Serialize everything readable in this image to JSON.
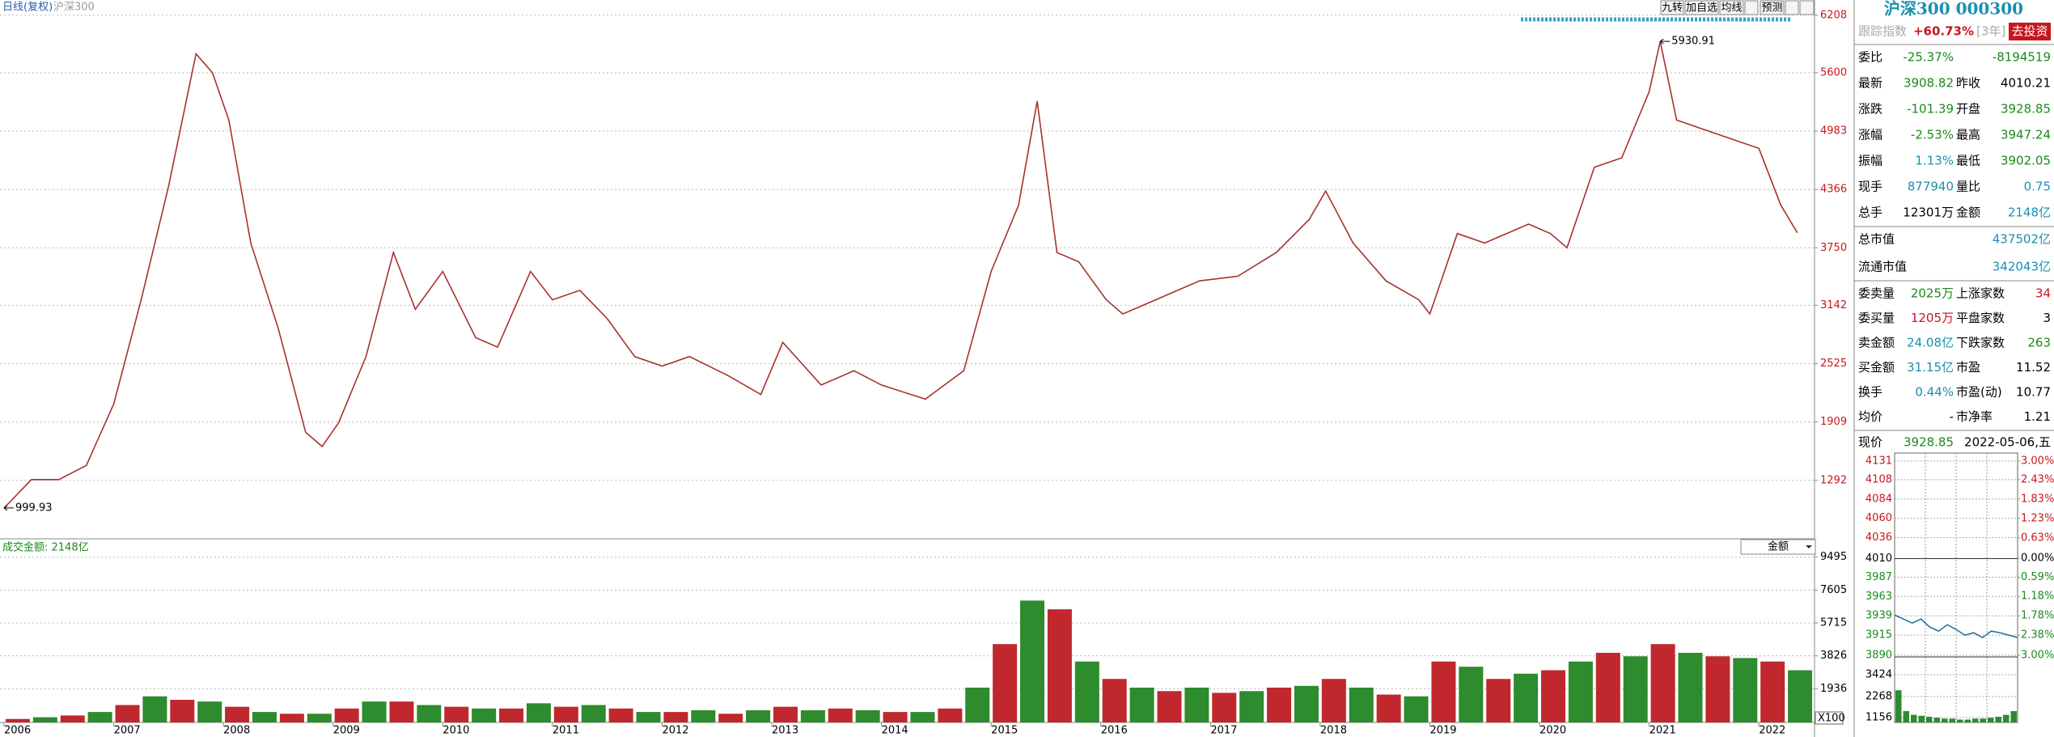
{
  "toolbar": [
    "九转",
    "加自选",
    "均线",
    "预测"
  ],
  "chart_data": [
    {
      "type": "line",
      "title": "日线(复权)",
      "subtitle": "沪深300",
      "color": "#a8322d",
      "x": [
        2006.0,
        2006.25,
        2006.5,
        2006.75,
        2007.0,
        2007.25,
        2007.5,
        2007.75,
        2007.9,
        2008.05,
        2008.25,
        2008.5,
        2008.75,
        2008.9,
        2009.05,
        2009.3,
        2009.55,
        2009.75,
        2010.0,
        2010.3,
        2010.5,
        2010.8,
        2011.0,
        2011.25,
        2011.5,
        2011.75,
        2012.0,
        2012.25,
        2012.6,
        2012.9,
        2013.1,
        2013.45,
        2013.75,
        2014.0,
        2014.4,
        2014.75,
        2015.0,
        2015.25,
        2015.42,
        2015.6,
        2015.8,
        2016.05,
        2016.2,
        2016.5,
        2016.9,
        2017.25,
        2017.6,
        2017.9,
        2018.05,
        2018.3,
        2018.6,
        2018.9,
        2019.0,
        2019.25,
        2019.5,
        2019.9,
        2020.1,
        2020.25,
        2020.5,
        2020.75,
        2021.0,
        2021.1,
        2021.25,
        2021.5,
        2021.75,
        2022.0,
        2022.2,
        2022.35
      ],
      "values": [
        999.93,
        1300,
        1300,
        1450,
        2100,
        3200,
        4400,
        5800,
        5600,
        5100,
        3800,
        2900,
        1800,
        1650,
        1900,
        2600,
        3700,
        3100,
        3500,
        2800,
        2700,
        3500,
        3200,
        3300,
        3000,
        2600,
        2500,
        2600,
        2400,
        2200,
        2750,
        2300,
        2450,
        2300,
        2150,
        2450,
        3500,
        4200,
        5300,
        3700,
        3600,
        3200,
        3050,
        3200,
        3400,
        3450,
        3700,
        4050,
        4350,
        3800,
        3400,
        3200,
        3050,
        3900,
        3800,
        4000,
        3900,
        3750,
        4600,
        4700,
        5400,
        5930.91,
        5100,
        5000,
        4900,
        4800,
        4200,
        3908.82
      ],
      "annotations": [
        {
          "label": "5930.91",
          "x": 2021.1,
          "y": 5930.91
        },
        {
          "label": "999.93",
          "x": 2006.0,
          "y": 999.93
        }
      ],
      "xlim": [
        2006,
        2022.5
      ],
      "xticks": [
        2006,
        2007,
        2008,
        2009,
        2010,
        2011,
        2012,
        2013,
        2014,
        2015,
        2016,
        2017,
        2018,
        2019,
        2020,
        2021,
        2022
      ],
      "ylim": [
        683,
        6300
      ],
      "yticks": [
        6208,
        5600,
        4983,
        4366,
        3750,
        3142,
        2525,
        1909,
        1292
      ],
      "grid": true
    },
    {
      "type": "bar",
      "title": "成交金额: 2148亿",
      "dropdown": "金额",
      "unit_label": "X100",
      "colors": [
        "#c0282d",
        "#2e8b2e"
      ],
      "x": [
        2006.125,
        2006.375,
        2006.625,
        2006.875,
        2007.125,
        2007.375,
        2007.625,
        2007.875,
        2008.125,
        2008.375,
        2008.625,
        2008.875,
        2009.125,
        2009.375,
        2009.625,
        2009.875,
        2010.125,
        2010.375,
        2010.625,
        2010.875,
        2011.125,
        2011.375,
        2011.625,
        2011.875,
        2012.125,
        2012.375,
        2012.625,
        2012.875,
        2013.125,
        2013.375,
        2013.625,
        2013.875,
        2014.125,
        2014.375,
        2014.625,
        2014.875,
        2015.125,
        2015.375,
        2015.625,
        2015.875,
        2016.125,
        2016.375,
        2016.625,
        2016.875,
        2017.125,
        2017.375,
        2017.625,
        2017.875,
        2018.125,
        2018.375,
        2018.625,
        2018.875,
        2019.125,
        2019.375,
        2019.625,
        2019.875,
        2020.125,
        2020.375,
        2020.625,
        2020.875,
        2021.125,
        2021.375,
        2021.625,
        2021.875,
        2022.125,
        2022.375
      ],
      "values": [
        200,
        300,
        400,
        600,
        1000,
        1500,
        1300,
        1200,
        900,
        600,
        500,
        500,
        800,
        1200,
        1200,
        1000,
        900,
        800,
        800,
        1100,
        900,
        1000,
        800,
        600,
        600,
        700,
        500,
        700,
        900,
        700,
        800,
        700,
        600,
        600,
        800,
        2000,
        4500,
        7000,
        6500,
        3500,
        2500,
        2000,
        1800,
        2000,
        1700,
        1800,
        2000,
        2100,
        2500,
        2000,
        1600,
        1500,
        3500,
        3200,
        2500,
        2800,
        3000,
        3500,
        4000,
        3800,
        4500,
        4000,
        3800,
        3700,
        3500,
        3000
      ],
      "ylim": [
        0,
        9900
      ],
      "yticks": [
        9495,
        7605,
        5715,
        3826,
        1936
      ],
      "grid": true
    },
    {
      "type": "intraday",
      "color": "#1f6f9a",
      "base": 4010,
      "values": [
        3940,
        3935,
        3930,
        3935,
        3925,
        3920,
        3928,
        3922,
        3915,
        3918,
        3912,
        3920,
        3918,
        3915,
        3912
      ],
      "ylim": [
        3890,
        4131
      ],
      "yticks": [
        4131,
        4108,
        4084,
        4060,
        4036,
        4010,
        3987,
        3963,
        3939,
        3915,
        3890
      ],
      "y2lim": [
        -3,
        3
      ],
      "y2ticks": [
        {
          "value": 3,
          "label": "3.00%"
        },
        {
          "value": 2.43,
          "label": "2.43%"
        },
        {
          "value": 1.83,
          "label": "1.83%"
        },
        {
          "value": 1.23,
          "label": "1.23%"
        },
        {
          "value": 0.63,
          "label": "0.63%"
        },
        {
          "value": 0,
          "label": "0.00%"
        },
        {
          "value": -0.59,
          "label": "0.59%"
        },
        {
          "value": -1.18,
          "label": "1.18%"
        },
        {
          "value": -1.78,
          "label": "1.78%"
        },
        {
          "value": -2.38,
          "label": "2.38%"
        },
        {
          "value": -3,
          "label": "3.00%"
        }
      ],
      "volume": {
        "color": "#2e8b2e",
        "values": [
          2600,
          1500,
          1300,
          1250,
          1200,
          1150,
          1100,
          1100,
          1050,
          1050,
          1100,
          1100,
          1150,
          1200,
          1300,
          1500
        ],
        "ylim": [
          899,
          4365
        ],
        "yticks": [
          3424,
          2268,
          1156
        ]
      }
    }
  ],
  "panel": {
    "title": "沪深300 000300",
    "track": {
      "label": "跟踪指数",
      "value": "+60.73%",
      "period": "[3年]",
      "button": "去投资"
    },
    "sections": [
      [
        [
          {
            "label": "委比",
            "value": "-25.37%",
            "color": "#1a8a1a"
          },
          {
            "value": "-8194519",
            "color": "#1a8a1a"
          }
        ],
        [
          {
            "label": "最新",
            "value": "3908.82",
            "color": "#1a8a1a"
          },
          {
            "label": "昨收",
            "value": "4010.21",
            "color": "#000000"
          }
        ],
        [
          {
            "label": "涨跌",
            "value": "-101.39",
            "color": "#1a8a1a"
          },
          {
            "label": "开盘",
            "value": "3928.85",
            "color": "#1a8a1a"
          }
        ],
        [
          {
            "label": "涨幅",
            "value": "-2.53%",
            "color": "#1a8a1a"
          },
          {
            "label": "最高",
            "value": "3947.24",
            "color": "#1a8a1a"
          }
        ],
        [
          {
            "label": "振幅",
            "value": "1.13%",
            "color": "#1a8fb0"
          },
          {
            "label": "最低",
            "value": "3902.05",
            "color": "#1a8a1a"
          }
        ],
        [
          {
            "label": "现手",
            "value": "877940",
            "color": "#1a8fb0"
          },
          {
            "label": "量比",
            "value": "0.75",
            "color": "#1a8fb0"
          }
        ],
        [
          {
            "label": "总手",
            "value": "12301万",
            "color": "#000000"
          },
          {
            "label": "金额",
            "value": "2148亿",
            "color": "#1a8fb0"
          }
        ]
      ],
      [
        [
          {
            "label": "总市值",
            "value": "437502亿",
            "color": "#1a8fb0"
          }
        ],
        [
          {
            "label": "流通市值",
            "value": "342043亿",
            "color": "#1a8fb0"
          }
        ]
      ],
      [
        [
          {
            "label": "委卖量",
            "value": "2025万",
            "color": "#1a8a1a"
          },
          {
            "label": "上涨家数",
            "value": "34",
            "color": "#c8161d"
          }
        ],
        [
          {
            "label": "委买量",
            "value": "1205万",
            "color": "#c8161d"
          },
          {
            "label": "平盘家数",
            "value": "3",
            "color": "#000000"
          }
        ],
        [
          {
            "label": "卖金额",
            "value": "24.08亿",
            "color": "#1a8fb0"
          },
          {
            "label": "下跌家数",
            "value": "263",
            "color": "#1a8a1a"
          }
        ],
        [
          {
            "label": "买金额",
            "value": "31.15亿",
            "color": "#1a8fb0"
          },
          {
            "label": "市盈",
            "value": "11.52",
            "color": "#000000"
          }
        ],
        [
          {
            "label": "换手",
            "value": "0.44%",
            "color": "#1a8fb0"
          },
          {
            "label": "市盈(动)",
            "value": "10.77",
            "color": "#000000"
          }
        ],
        [
          {
            "label": "均价",
            "value": "-",
            "color": "#000000"
          },
          {
            "label": "市净率",
            "value": "1.21",
            "color": "#000000"
          }
        ]
      ],
      [
        [
          {
            "label": "现价",
            "value": "3928.85",
            "color": "#1a8a1a"
          },
          {
            "value": "2022-05-06,五",
            "color": "#000000"
          }
        ]
      ]
    ]
  }
}
